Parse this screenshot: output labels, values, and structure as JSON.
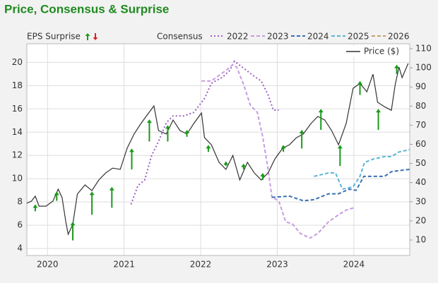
{
  "chart_data": {
    "type": "line",
    "title": "Price, Consensus & Surprise",
    "legend_labels": {
      "surprise": "EPS Surprise",
      "consensus": "Consensus"
    },
    "legend": "top",
    "grid": true,
    "xlim": [
      2019.73,
      2024.73
    ],
    "xticks": [
      2020,
      2021,
      2022,
      2023,
      2024
    ],
    "ylim": [
      3.4,
      21.6
    ],
    "yticks": [
      4,
      6,
      8,
      10,
      12,
      14,
      16,
      18,
      20
    ],
    "y2lim": [
      1.9,
      112.6
    ],
    "y2ticks": [
      10,
      20,
      30,
      40,
      50,
      60,
      70,
      80,
      90,
      100,
      110
    ],
    "series": [
      {
        "name": "2022",
        "color": "#9a5fc0",
        "dash": "dot",
        "x": [
          2021.09,
          2021.18,
          2021.27,
          2021.36,
          2021.45,
          2021.55,
          2021.64,
          2021.78,
          2021.91,
          2022.05,
          2022.14,
          2022.28,
          2022.38,
          2022.44,
          2022.56,
          2022.7,
          2022.79,
          2022.88,
          2022.95,
          2023.02
        ],
        "values": [
          7.8,
          9.4,
          9.9,
          12.0,
          13.2,
          14.8,
          15.4,
          15.4,
          15.7,
          16.9,
          18.2,
          18.7,
          19.3,
          20.1,
          19.5,
          18.8,
          18.4,
          17.2,
          15.9,
          15.9
        ]
      },
      {
        "name": "2023",
        "color": "#c79be0",
        "dash": "dash",
        "x": [
          2022.01,
          2022.14,
          2022.33,
          2022.42,
          2022.47,
          2022.56,
          2022.65,
          2022.74,
          2022.81,
          2022.88,
          2022.93,
          2023.02,
          2023.11,
          2023.2,
          2023.3,
          2023.43,
          2023.53,
          2023.67,
          2023.8,
          2023.9,
          2024.0
        ],
        "values": [
          18.4,
          18.4,
          19.3,
          19.8,
          19.6,
          18.1,
          16.3,
          15.7,
          13.6,
          10.8,
          8.4,
          8.1,
          6.3,
          6.1,
          5.3,
          4.9,
          5.3,
          6.3,
          6.9,
          7.3,
          7.5
        ]
      },
      {
        "name": "2024",
        "color": "#3a6fb0",
        "dash": "dash",
        "x": [
          2022.93,
          2023.16,
          2023.34,
          2023.48,
          2023.67,
          2023.8,
          2023.94,
          2024.03,
          2024.13,
          2024.26,
          2024.4,
          2024.49,
          2024.59,
          2024.73
        ],
        "values": [
          8.4,
          8.5,
          8.1,
          8.2,
          8.7,
          8.7,
          9.1,
          9.0,
          10.2,
          10.2,
          10.2,
          10.6,
          10.7,
          10.8
        ]
      },
      {
        "name": "2025",
        "color": "#5ab4d6",
        "dash": "dash",
        "x": [
          2023.48,
          2023.67,
          2023.76,
          2023.85,
          2023.99,
          2024.08,
          2024.14,
          2024.26,
          2024.4,
          2024.49,
          2024.59,
          2024.73
        ],
        "values": [
          10.2,
          10.5,
          10.5,
          9.1,
          9.3,
          10.2,
          11.4,
          11.7,
          11.9,
          11.9,
          12.3,
          12.5
        ]
      },
      {
        "name": "2026",
        "color": "#c8a070",
        "dash": "dash",
        "x": [],
        "values": []
      },
      {
        "name": "Price ($)",
        "color": "#333333",
        "dash": "solid",
        "axis": "y2",
        "x": [
          2019.73,
          2019.79,
          2019.84,
          2019.89,
          2019.98,
          2020.07,
          2020.14,
          2020.19,
          2020.24,
          2020.27,
          2020.33,
          2020.39,
          2020.49,
          2020.58,
          2020.67,
          2020.76,
          2020.85,
          2020.95,
          2021.04,
          2021.13,
          2021.22,
          2021.32,
          2021.39,
          2021.45,
          2021.55,
          2021.64,
          2021.73,
          2021.82,
          2021.91,
          2022.01,
          2022.05,
          2022.14,
          2022.24,
          2022.33,
          2022.42,
          2022.51,
          2022.61,
          2022.7,
          2022.79,
          2022.88,
          2022.97,
          2023.07,
          2023.16,
          2023.25,
          2023.34,
          2023.44,
          2023.53,
          2023.62,
          2023.71,
          2023.8,
          2023.9,
          2023.99,
          2024.08,
          2024.17,
          2024.25,
          2024.31,
          2024.4,
          2024.49,
          2024.54,
          2024.59,
          2024.63,
          2024.71
        ],
        "values": [
          29.2,
          30.3,
          32.9,
          27.7,
          27.7,
          30.3,
          36.6,
          32.1,
          19.2,
          13.0,
          18.1,
          34.0,
          38.8,
          35.8,
          41.4,
          45.1,
          47.6,
          46.9,
          58.0,
          65.4,
          70.9,
          76.4,
          80.1,
          67.2,
          65.4,
          72.7,
          67.2,
          65.4,
          70.9,
          76.4,
          63.5,
          59.8,
          50.6,
          46.9,
          54.2,
          41.4,
          50.6,
          45.1,
          41.4,
          45.1,
          52.4,
          58.0,
          59.8,
          63.5,
          65.4,
          70.9,
          74.6,
          72.7,
          67.2,
          59.8,
          70.9,
          89.3,
          91.9,
          87.5,
          96.7,
          82.0,
          79.7,
          77.8,
          91.2,
          100.4,
          94.9,
          102.3
        ]
      }
    ],
    "surprise": {
      "color": "#1a9a1a",
      "down_color": "#dd2222",
      "x": [
        2019.84,
        2020.12,
        2020.33,
        2020.58,
        2020.84,
        2021.1,
        2021.33,
        2021.57,
        2021.82,
        2022.1,
        2022.33,
        2022.56,
        2022.81,
        2023.08,
        2023.32,
        2023.57,
        2023.82,
        2024.08,
        2024.32,
        2024.56
      ],
      "consensus": [
        7.2,
        8.1,
        4.7,
        6.9,
        7.5,
        10.8,
        13.2,
        13.2,
        13.6,
        12.3,
        11.1,
        10.8,
        9.9,
        12.3,
        12.6,
        14.2,
        11.1,
        17.2,
        14.2,
        19.0
      ],
      "actual": [
        7.8,
        8.9,
        6.3,
        8.9,
        9.3,
        12.6,
        15.1,
        14.6,
        14.2,
        12.9,
        11.5,
        11.3,
        10.5,
        12.9,
        14.2,
        16.0,
        12.9,
        18.4,
        16.0,
        19.8
      ]
    }
  }
}
